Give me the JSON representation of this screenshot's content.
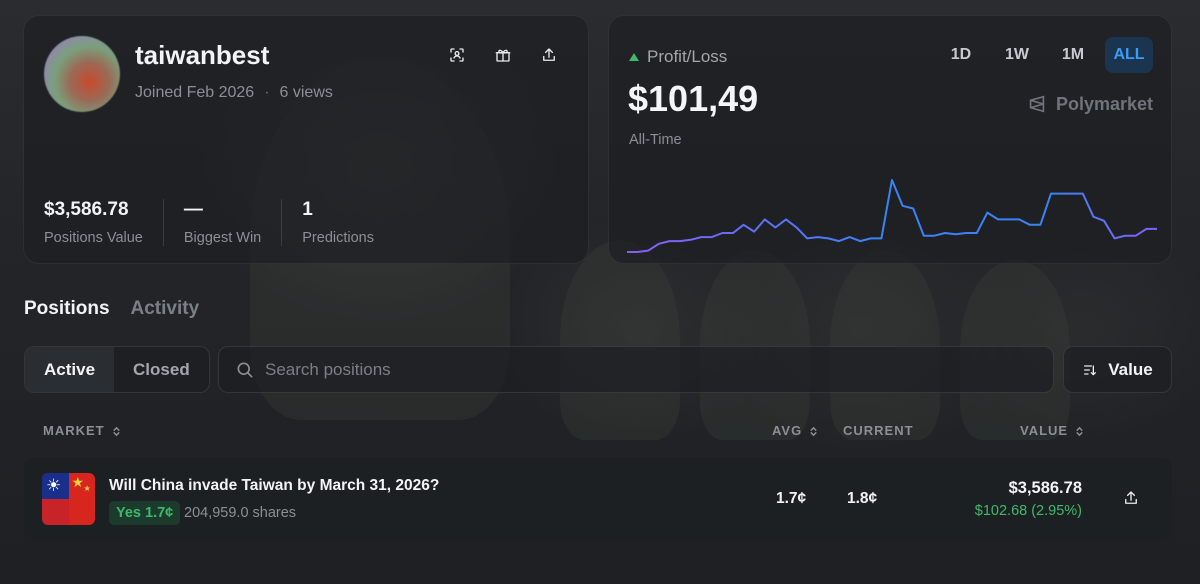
{
  "profile": {
    "username": "taiwanbest",
    "joined": "Joined Feb 2026",
    "separator": "·",
    "views": "6 views",
    "actions": [
      {
        "name": "scan-icon"
      },
      {
        "name": "gift-icon"
      },
      {
        "name": "share-icon"
      }
    ],
    "stats": [
      {
        "value": "$3,586.78",
        "label": "Positions Value"
      },
      {
        "value": "—",
        "label": "Biggest Win"
      },
      {
        "value": "1",
        "label": "Predictions"
      }
    ]
  },
  "pnl": {
    "title": "Profit/Loss",
    "amount": "$101,49",
    "period": "All-Time",
    "ranges": [
      "1D",
      "1W",
      "1M",
      "ALL"
    ],
    "active_range": "ALL",
    "brand": "Polymarket",
    "colors": {
      "up": "#3fb968",
      "line_start": "#8b5cf6",
      "line_end": "#3b82f6",
      "active_tab": "#3e9bf5"
    }
  },
  "chart_data": {
    "type": "line",
    "title": "",
    "xlabel": "",
    "ylabel": "",
    "series": [
      {
        "values": [
          2,
          2,
          3,
          8,
          10,
          10,
          11,
          13,
          13,
          16,
          16,
          22,
          17,
          26,
          20,
          26,
          20,
          12,
          13,
          12,
          10,
          13,
          10,
          12,
          12,
          55,
          36,
          34,
          14,
          14,
          16,
          15,
          16,
          16,
          31,
          26,
          26,
          26,
          22,
          22,
          45,
          45,
          45,
          45,
          28,
          25,
          12,
          14,
          14,
          19,
          19
        ]
      }
    ],
    "grid": false
  },
  "main_tabs": [
    "Positions",
    "Activity"
  ],
  "filters": {
    "toggles": [
      "Active",
      "Closed"
    ],
    "active_toggle": "Active",
    "search_placeholder": "Search positions",
    "sort_label": "Value"
  },
  "table": {
    "headers": {
      "market": "MARKET",
      "avg": "AVG",
      "current": "CURRENT",
      "value": "VALUE"
    },
    "rows": [
      {
        "market": "Will China invade Taiwan by March 31, 2026?",
        "outcome": "Yes 1.7¢",
        "shares": "204,959.0 shares",
        "avg": "1.7¢",
        "current": "1.8¢",
        "value": "$3,586.78",
        "change": "$102.68 (2.95%)"
      }
    ]
  }
}
